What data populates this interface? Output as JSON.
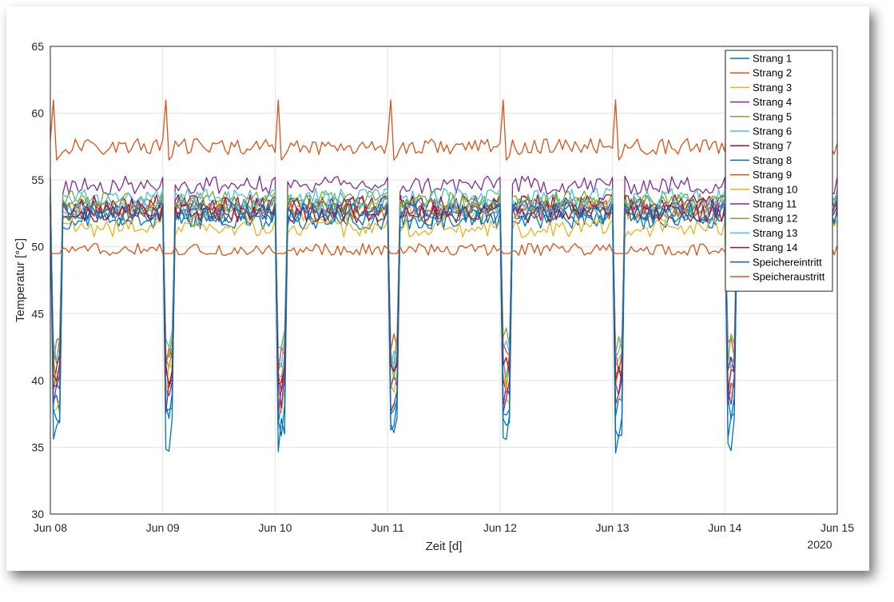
{
  "chart_data": {
    "type": "line",
    "xlabel": "Zeit [d]",
    "ylabel": "Temperatur [°C]",
    "year_label": "2020",
    "ylim": [
      30,
      65
    ],
    "yticks": [
      30,
      35,
      40,
      45,
      50,
      55,
      60,
      65
    ],
    "xlim": [
      "2020-06-08",
      "2020-06-15"
    ],
    "xticks": [
      "Jun 08",
      "Jun 09",
      "Jun 10",
      "Jun 11",
      "Jun 12",
      "Jun 13",
      "Jun 14",
      "Jun 15"
    ],
    "grid": true,
    "legend_position": "top-right",
    "series": [
      {
        "name": "Strang 1",
        "color": "#0072BD",
        "level": 52.3,
        "dip": 36.5
      },
      {
        "name": "Strang 2",
        "color": "#D95319",
        "level": 57.5,
        "dip": 56.5
      },
      {
        "name": "Strang 3",
        "color": "#EDB120",
        "level": 52.6,
        "dip": 37.2
      },
      {
        "name": "Strang 4",
        "color": "#7E2F8E",
        "level": 54.6,
        "dip": 37.8
      },
      {
        "name": "Strang 5",
        "color": "#77AC30",
        "level": 53.5,
        "dip": 39.5
      },
      {
        "name": "Strang 6",
        "color": "#4DBEEE",
        "level": 53.7,
        "dip": 40.2
      },
      {
        "name": "Strang 7",
        "color": "#A2142F",
        "level": 53.2,
        "dip": 39.0
      },
      {
        "name": "Strang 8",
        "color": "#0072BD",
        "level": 52.0,
        "dip": 35.5
      },
      {
        "name": "Strang 9",
        "color": "#D95319",
        "level": 52.8,
        "dip": 40.5
      },
      {
        "name": "Strang 10",
        "color": "#EDB120",
        "level": 51.4,
        "dip": 38.5
      },
      {
        "name": "Strang 11",
        "color": "#7E2F8E",
        "level": 53.0,
        "dip": 37.5
      },
      {
        "name": "Strang 12",
        "color": "#77AC30",
        "level": 53.2,
        "dip": 41.0
      },
      {
        "name": "Strang 13",
        "color": "#4DBEEE",
        "level": 52.9,
        "dip": 40.8
      },
      {
        "name": "Strang 14",
        "color": "#A2142F",
        "level": 52.5,
        "dip": 38.8
      },
      {
        "name": "Speichereintritt",
        "color": "#0072BD",
        "level": 52.6,
        "dip": 34.5
      },
      {
        "name": "Speicheraustritt",
        "color": "#D95319",
        "level": 49.8,
        "dip": 49.0
      }
    ]
  }
}
